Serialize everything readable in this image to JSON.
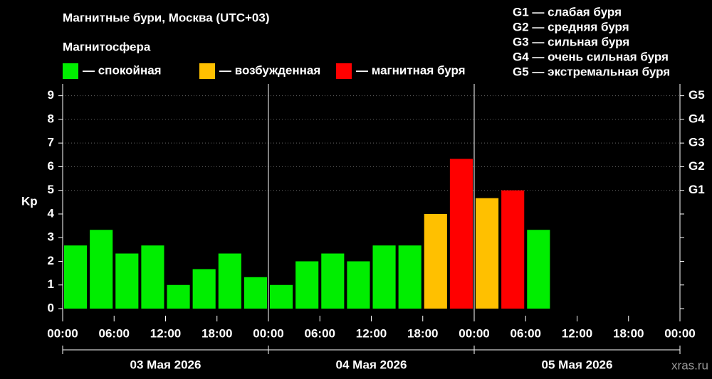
{
  "chart_data": {
    "type": "bar",
    "title": "Магнитные бури, Москва (UTC+03)",
    "legend_title": "Магнитосфера",
    "legend": [
      {
        "label": "— спокойная",
        "color": "#00ee00"
      },
      {
        "label": "— возбужденная",
        "color": "#ffc000"
      },
      {
        "label": "— магнитная буря",
        "color": "#ff0000"
      }
    ],
    "storm_scale": [
      "G1 — слабая буря",
      "G2 — средняя буря",
      "G3 — сильная буря",
      "G4 — очень сильная буря",
      "G5 — экстремальная буря"
    ],
    "ylabel": "Kp",
    "categories": [
      null,
      null,
      null,
      null,
      null,
      null,
      null,
      null,
      null,
      null,
      null,
      null,
      null,
      null,
      null,
      null,
      null,
      null,
      null,
      null,
      null,
      null,
      null,
      null
    ],
    "values": [
      2.67,
      3.33,
      2.33,
      2.67,
      1,
      1.67,
      2.33,
      1.33,
      1,
      2,
      2.33,
      2,
      2.67,
      2.67,
      4,
      6.33,
      4.67,
      5,
      3.33,
      null,
      null,
      null,
      null,
      null
    ],
    "colors": [
      "#00ee00",
      "#00ee00",
      "#00ee00",
      "#00ee00",
      "#00ee00",
      "#00ee00",
      "#00ee00",
      "#00ee00",
      "#00ee00",
      "#00ee00",
      "#00ee00",
      "#00ee00",
      "#00ee00",
      "#00ee00",
      "#ffc000",
      "#ff0000",
      "#ffc000",
      "#ff0000",
      "#00ee00",
      null,
      null,
      null,
      null,
      null
    ],
    "ylim": [
      -0.3,
      9.5
    ],
    "yticks": [
      0,
      1,
      2,
      3,
      4,
      5,
      6,
      7,
      8,
      9
    ],
    "y2ticks": [
      {
        "value": 5,
        "label": "G1"
      },
      {
        "value": 6,
        "label": "G2"
      },
      {
        "value": 7,
        "label": "G3"
      },
      {
        "value": 8,
        "label": "G4"
      },
      {
        "value": 9,
        "label": "G5"
      }
    ],
    "xtick_labels": [
      "00:00",
      "06:00",
      "12:00",
      "18:00",
      "00:00",
      "06:00",
      "12:00",
      "18:00",
      "00:00",
      "06:00",
      "12:00",
      "18:00",
      "00:00"
    ],
    "date_labels": [
      "03 Мая 2026",
      "04 Мая 2026",
      "05 Мая 2026"
    ],
    "watermark": "xras.ru"
  }
}
